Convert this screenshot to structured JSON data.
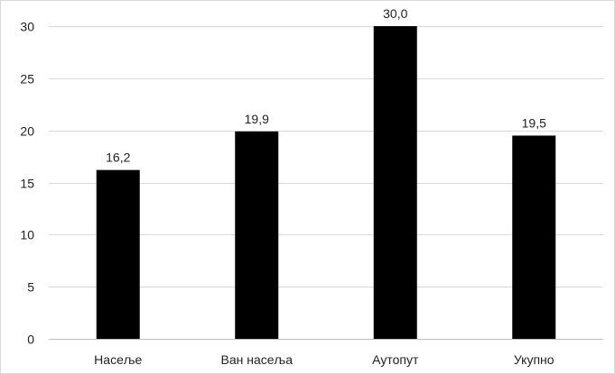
{
  "chart_data": {
    "type": "bar",
    "categories": [
      "Насеље",
      "Ван насеља",
      "Аутопут",
      "Укупно"
    ],
    "values": [
      16.2,
      19.9,
      30.0,
      19.5
    ],
    "data_labels": [
      "16,2",
      "19,9",
      "30,0",
      "19,5"
    ],
    "y_ticks": [
      0,
      5,
      10,
      15,
      20,
      25,
      30
    ],
    "ylim": [
      0,
      30
    ],
    "grid": true,
    "bar_color": "#000000",
    "title": "",
    "xlabel": "",
    "ylabel": ""
  }
}
